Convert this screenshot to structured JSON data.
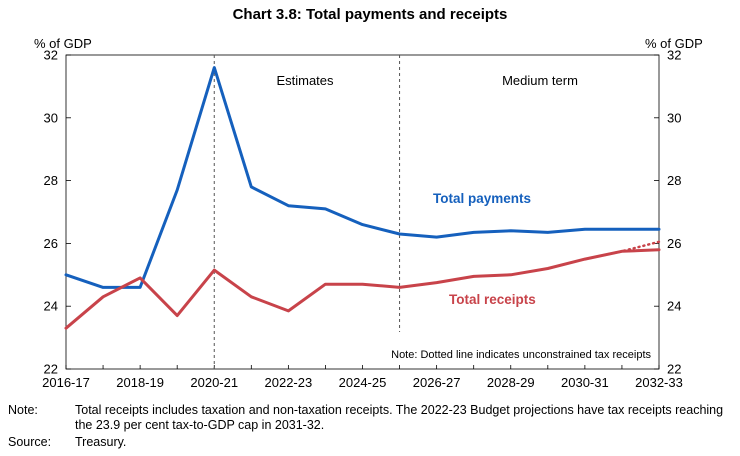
{
  "chart_data": {
    "type": "line",
    "title": "Chart 3.8: Total payments and receipts",
    "ylabel_left": "% of GDP",
    "ylabel_right": "% of GDP",
    "ylim": [
      22,
      32
    ],
    "yticks": [
      22,
      24,
      26,
      28,
      30,
      32
    ],
    "x": [
      "2016-17",
      "2017-18",
      "2018-19",
      "2019-20",
      "2020-21",
      "2021-22",
      "2022-23",
      "2023-24",
      "2024-25",
      "2025-26",
      "2026-27",
      "2027-28",
      "2028-29",
      "2029-30",
      "2030-31",
      "2031-32",
      "2032-33"
    ],
    "xtick_labels": [
      "2016-17",
      "2018-19",
      "2020-21",
      "2022-23",
      "2024-25",
      "2026-27",
      "2028-29",
      "2030-31",
      "2032-33"
    ],
    "grid": false,
    "series": [
      {
        "name": "Total payments",
        "color": "#1560bd",
        "values": [
          25.0,
          24.6,
          24.6,
          27.7,
          31.6,
          27.8,
          27.2,
          27.1,
          26.6,
          26.3,
          26.2,
          26.35,
          26.4,
          26.35,
          26.45,
          26.45,
          26.45
        ]
      },
      {
        "name": "Total receipts",
        "color": "#c8434a",
        "values": [
          23.3,
          24.3,
          24.9,
          23.7,
          25.15,
          24.3,
          23.85,
          24.7,
          24.7,
          24.6,
          24.75,
          24.95,
          25.0,
          25.2,
          25.5,
          25.75,
          25.8
        ]
      },
      {
        "name": "Unconstrained tax receipts",
        "color": "#c8434a",
        "dotted": true,
        "x": [
          "2030-31",
          "2031-32",
          "2032-33"
        ],
        "values": [
          25.5,
          25.75,
          26.05
        ]
      }
    ],
    "vertical_markers": [
      {
        "x": "2020-21",
        "label": "Estimates"
      },
      {
        "x": "2025-26",
        "label": "Medium term"
      }
    ],
    "annotations": {
      "payments_label": "Total payments",
      "receipts_label": "Total receipts",
      "dotted_note": "Note: Dotted line indicates unconstrained tax receipts"
    }
  },
  "footnotes": {
    "note_label": "Note:",
    "note_text": "Total receipts includes taxation and non-taxation receipts. The 2022-23 Budget projections have tax receipts reaching the 23.9 per cent tax-to-GDP cap in 2031-32.",
    "source_label": "Source:",
    "source_text": "Treasury."
  }
}
